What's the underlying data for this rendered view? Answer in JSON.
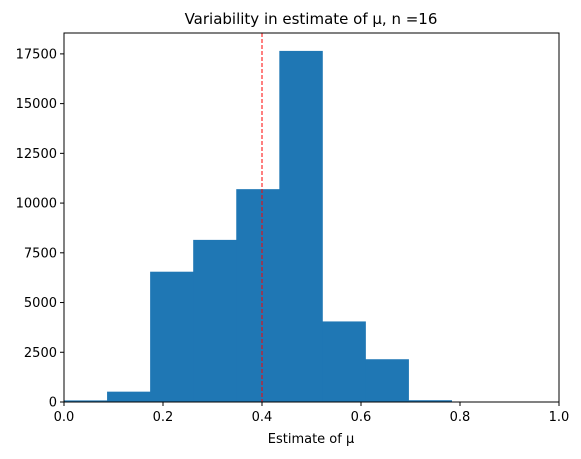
{
  "chart_data": {
    "type": "bar",
    "title": "Variability in estimate of μ, n =16",
    "xlabel": "Estimate of μ",
    "ylabel": "",
    "xlim": [
      0.0,
      1.0
    ],
    "ylim": [
      0,
      18550
    ],
    "xticks": [
      "0.0",
      "0.2",
      "0.4",
      "0.6",
      "0.8",
      "1.0"
    ],
    "yticks": [
      "0",
      "2500",
      "5000",
      "7500",
      "10000",
      "12500",
      "15000",
      "17500"
    ],
    "grid": false,
    "bar_color": "#1f77b4",
    "bins": [
      {
        "x0": 0.0,
        "x1": 0.087,
        "count": 80
      },
      {
        "x0": 0.087,
        "x1": 0.174,
        "count": 520
      },
      {
        "x0": 0.174,
        "x1": 0.261,
        "count": 6550
      },
      {
        "x0": 0.261,
        "x1": 0.348,
        "count": 8150
      },
      {
        "x0": 0.348,
        "x1": 0.435,
        "count": 10700
      },
      {
        "x0": 0.435,
        "x1": 0.522,
        "count": 17650
      },
      {
        "x0": 0.522,
        "x1": 0.609,
        "count": 4050
      },
      {
        "x0": 0.609,
        "x1": 0.696,
        "count": 2150
      },
      {
        "x0": 0.696,
        "x1": 0.783,
        "count": 90
      },
      {
        "x0": 0.783,
        "x1": 0.87,
        "count": 20
      }
    ],
    "reference_line": {
      "x": 0.4,
      "color": "#ff0000",
      "style": "dashed"
    }
  }
}
